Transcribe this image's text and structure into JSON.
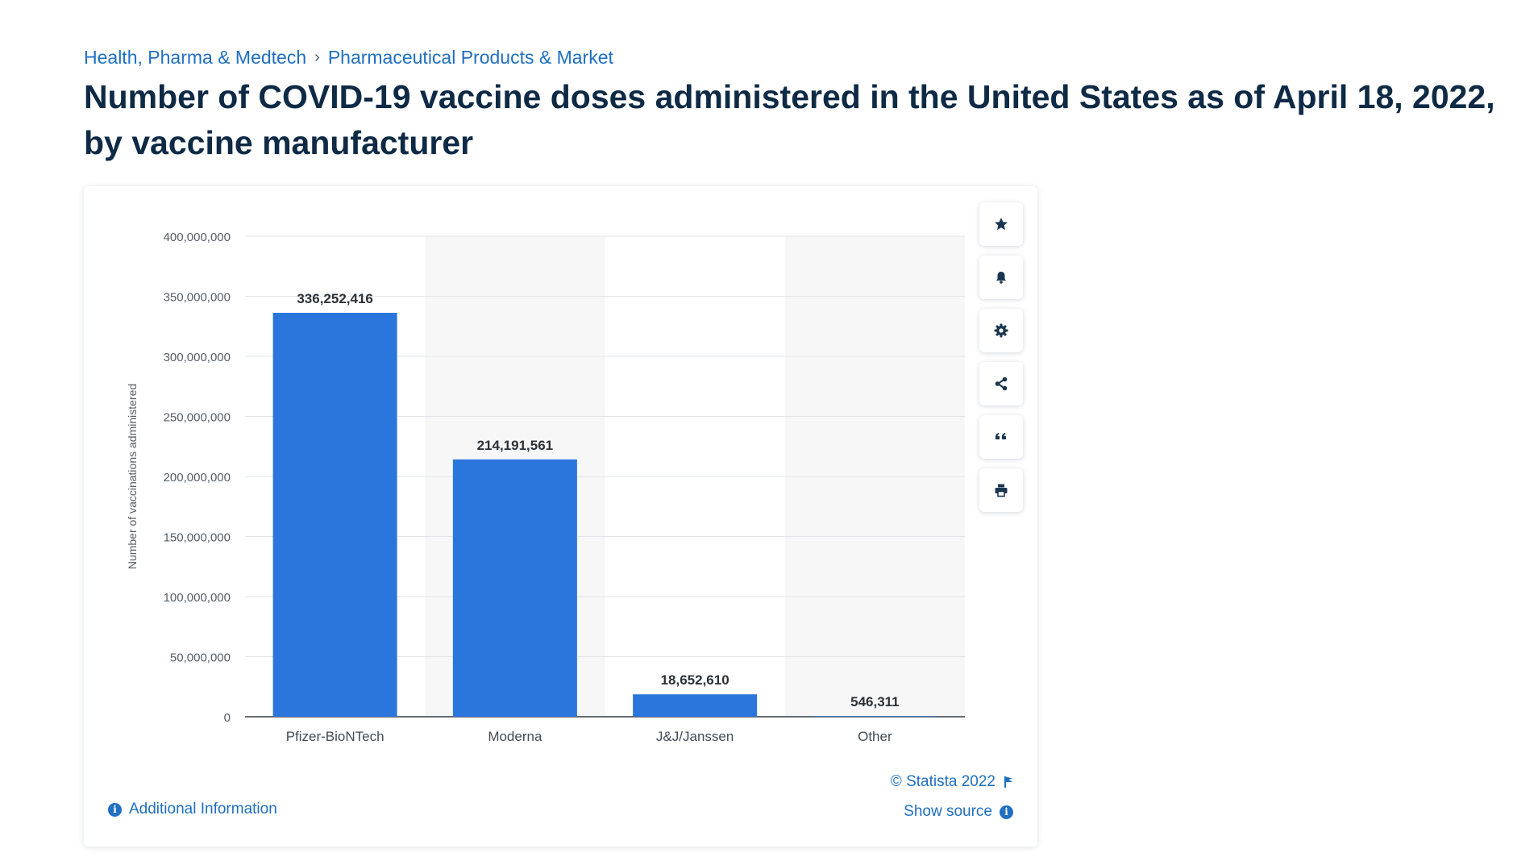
{
  "breadcrumb": {
    "items": [
      "Health, Pharma & Medtech",
      "Pharmaceutical Products & Market"
    ],
    "separator": "›"
  },
  "title": "Number of COVID-19 vaccine doses administered in the United States as of April 18, 2022, by vaccine manufacturer",
  "toolbar": {
    "icons": [
      "star-icon",
      "bell-icon",
      "gear-icon",
      "share-icon",
      "quote-icon",
      "print-icon"
    ]
  },
  "footer": {
    "additional_info": "Additional Information",
    "copyright": "© Statista 2022",
    "show_source": "Show source"
  },
  "colors": {
    "bar": "#2a76dc",
    "accent": "#1f6fc2",
    "title": "#0e2a45",
    "band": "#f7f7f7"
  },
  "chart_data": {
    "type": "bar",
    "title": "",
    "xlabel": "",
    "ylabel": "Number of vaccinations administered",
    "categories": [
      "Pfizer-BioNTech",
      "Moderna",
      "J&J/Janssen",
      "Other"
    ],
    "values": [
      336252416,
      214191561,
      18652610,
      546311
    ],
    "value_labels": [
      "336,252,416",
      "214,191,561",
      "18,652,610",
      "546,311"
    ],
    "ylim": [
      0,
      400000000
    ],
    "yticks": [
      0,
      50000000,
      100000000,
      150000000,
      200000000,
      250000000,
      300000000,
      350000000,
      400000000
    ],
    "ytick_labels": [
      "0",
      "50,000,000",
      "100,000,000",
      "150,000,000",
      "200,000,000",
      "250,000,000",
      "300,000,000",
      "350,000,000",
      "400,000,000"
    ],
    "grid": true,
    "legend": "none"
  }
}
